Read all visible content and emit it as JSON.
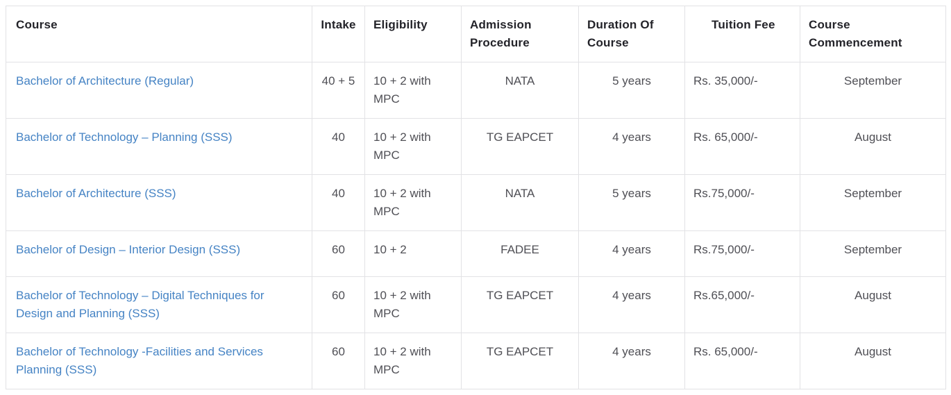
{
  "table": {
    "columns": [
      {
        "key": "course",
        "label": "Course"
      },
      {
        "key": "intake",
        "label": "Intake"
      },
      {
        "key": "eligibility",
        "label": "Eligibility"
      },
      {
        "key": "admission",
        "label": "Admission Procedure"
      },
      {
        "key": "duration",
        "label": "Duration Of Course"
      },
      {
        "key": "tuition",
        "label": "Tuition Fee"
      },
      {
        "key": "commencement",
        "label": "Course Commencement"
      }
    ],
    "rows": [
      {
        "course": "Bachelor of Architecture (Regular)",
        "intake": "40 + 5",
        "eligibility": "10 + 2 with MPC",
        "admission": "NATA",
        "duration": "5 years",
        "tuition": "Rs. 35,000/-",
        "commencement": "September"
      },
      {
        "course": "Bachelor of Technology – Planning (SSS)",
        "intake": "40",
        "eligibility": "10 + 2 with MPC",
        "admission": "TG EAPCET",
        "duration": "4 years",
        "tuition": "Rs. 65,000/-",
        "commencement": "August"
      },
      {
        "course": "Bachelor of Architecture (SSS)",
        "intake": "40",
        "eligibility": "10 + 2 with MPC",
        "admission": "NATA",
        "duration": "5 years",
        "tuition": "Rs.75,000/-",
        "commencement": "September"
      },
      {
        "course": "Bachelor of Design – Interior Design (SSS)",
        "intake": "60",
        "eligibility": "10 + 2",
        "admission": "FADEE",
        "duration": "4 years",
        "tuition": "Rs.75,000/-",
        "commencement": "September"
      },
      {
        "course": "Bachelor of Technology – Digital Techniques for Design and Planning (SSS)",
        "intake": "60",
        "eligibility": "10 + 2 with MPC",
        "admission": "TG EAPCET",
        "duration": "4 years",
        "tuition": "Rs.65,000/-",
        "commencement": "August"
      },
      {
        "course": "Bachelor of Technology -Facilities and Services Planning (SSS)",
        "intake": "60",
        "eligibility": "10 + 2 with MPC",
        "admission": "TG EAPCET",
        "duration": "4 years",
        "tuition": "Rs. 65,000/-",
        "commencement": "August"
      }
    ],
    "colors": {
      "link_blue": "#4583c4",
      "header_text": "#232329",
      "body_text": "#4f4f55",
      "border": "#e2e2e5",
      "background": "#ffffff"
    }
  }
}
